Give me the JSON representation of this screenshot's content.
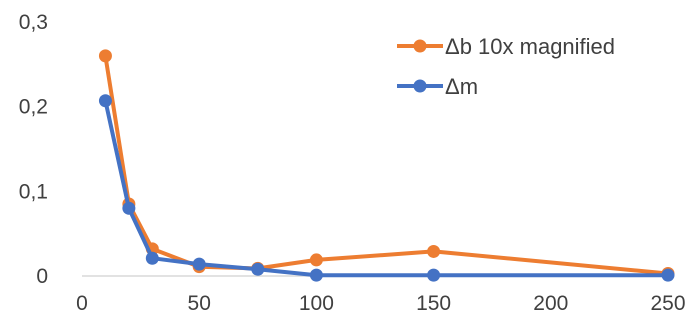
{
  "chart_data": {
    "type": "line",
    "title": "",
    "xlabel": "",
    "ylabel": "",
    "xlim": [
      0,
      250
    ],
    "ylim": [
      0,
      0.3
    ],
    "x_ticks": [
      "0",
      "50",
      "100",
      "150",
      "200",
      "250"
    ],
    "y_ticks": [
      "0",
      "0,1",
      "0,2",
      "0,3"
    ],
    "grid": false,
    "legend_position": "top-right",
    "series": [
      {
        "name": "Δb 10x magnified",
        "color": "#ED7D31",
        "x": [
          10,
          20,
          30,
          50,
          75,
          100,
          150,
          250
        ],
        "y": [
          0.26,
          0.085,
          0.032,
          0.011,
          0.009,
          0.019,
          0.029,
          0.003
        ]
      },
      {
        "name": "Δm",
        "color": "#4472C4",
        "x": [
          10,
          20,
          30,
          50,
          75,
          100,
          150,
          250
        ],
        "y": [
          0.207,
          0.08,
          0.021,
          0.014,
          0.008,
          0.001,
          0.001,
          0.001
        ]
      }
    ]
  }
}
